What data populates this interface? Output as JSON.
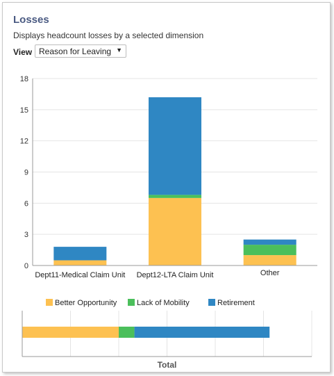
{
  "header": {
    "title": "Losses",
    "subtitle": "Displays headcount losses by a selected dimension",
    "view_label": "View",
    "view_value": "Reason for Leaving"
  },
  "colors": {
    "Better Opportunity": "#fdc151",
    "Lack of Mobility": "#4bbf5b",
    "Retirement": "#2f87c3"
  },
  "chart_data": [
    {
      "type": "bar",
      "stacked": true,
      "categories": [
        "Dept11-Medical Claim Unit",
        "Dept12-LTA Claim Unit",
        "Other"
      ],
      "series": [
        {
          "name": "Better Opportunity",
          "values": [
            0.5,
            6.5,
            1.0
          ]
        },
        {
          "name": "Lack of Mobility",
          "values": [
            0,
            0.3,
            1.0
          ]
        },
        {
          "name": "Retirement",
          "values": [
            1.3,
            9.4,
            0.5
          ]
        }
      ],
      "yticks": [
        0,
        3,
        6,
        9,
        12,
        15,
        18
      ],
      "ylim": [
        0,
        18
      ],
      "grid": true,
      "legend": "bottom"
    },
    {
      "type": "bar",
      "orientation": "horizontal",
      "stacked": true,
      "categories": [
        "Total"
      ],
      "series": [
        {
          "name": "Better Opportunity",
          "values": [
            8.0
          ]
        },
        {
          "name": "Lack of Mobility",
          "values": [
            1.3
          ]
        },
        {
          "name": "Retirement",
          "values": [
            11.2
          ]
        }
      ],
      "xlim": [
        0,
        24
      ],
      "grid": true
    }
  ]
}
